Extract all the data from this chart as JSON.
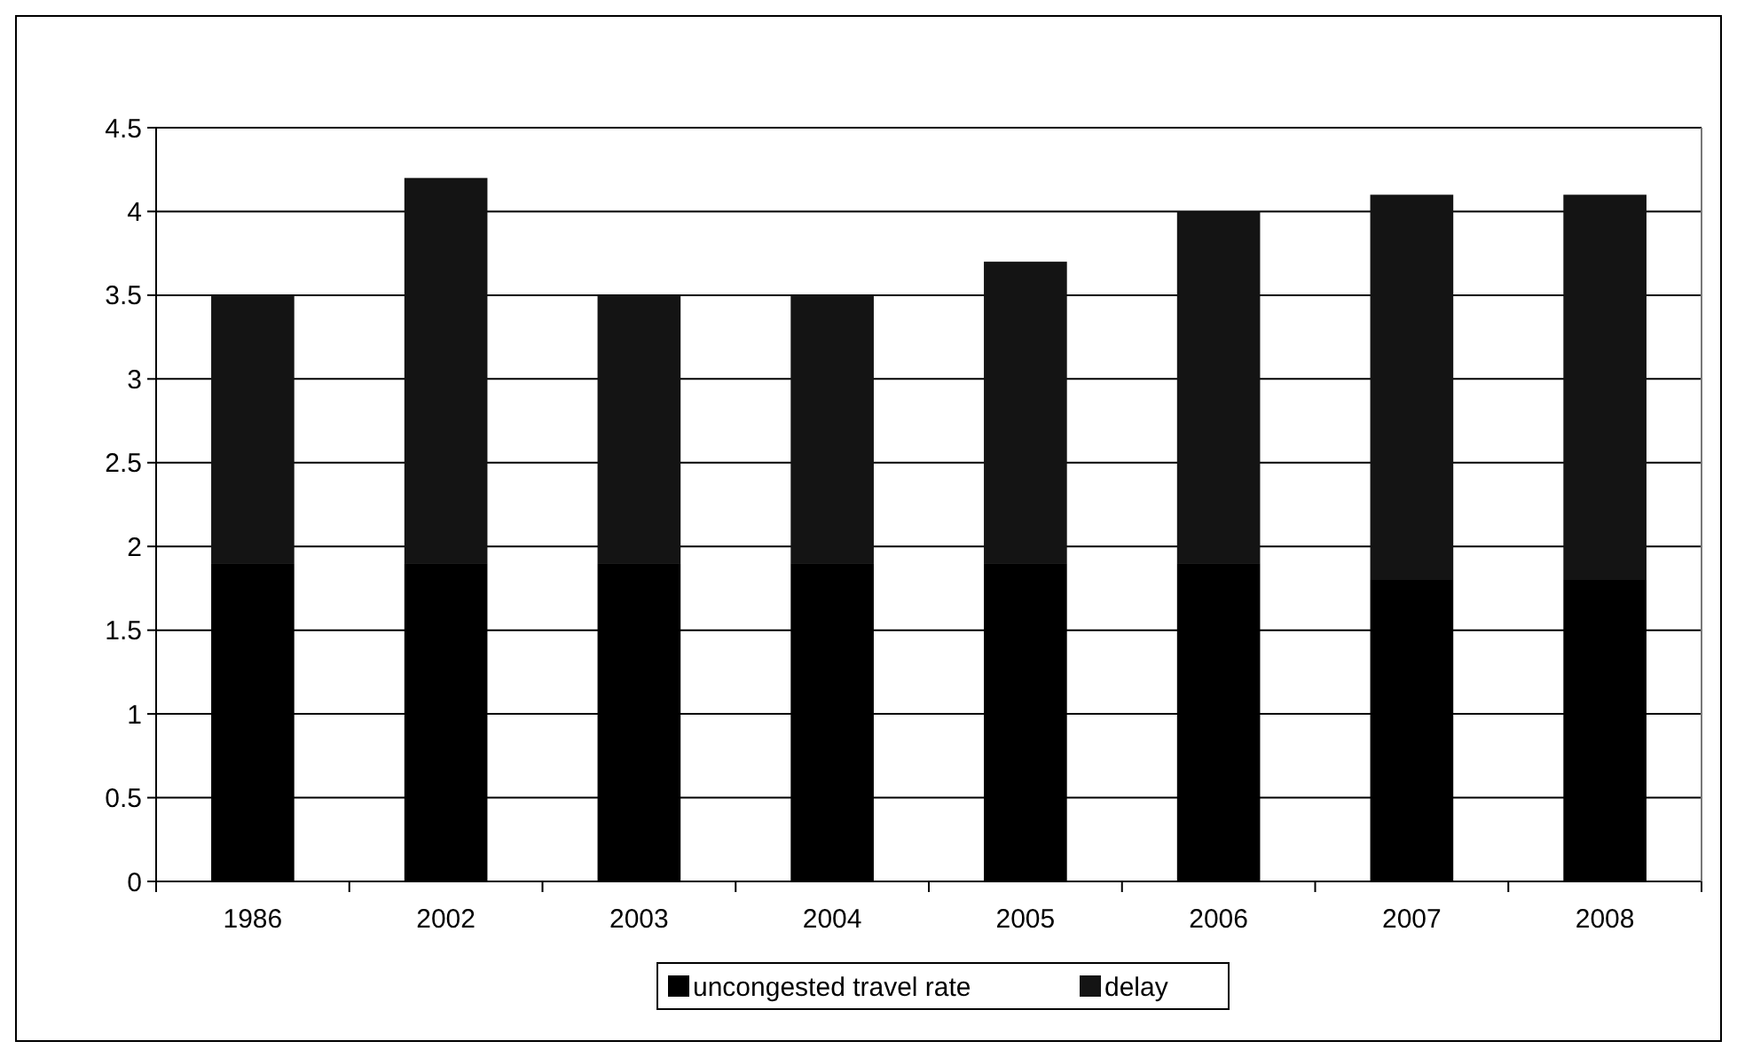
{
  "chart_data": {
    "type": "bar",
    "stacked": true,
    "categories": [
      "1986",
      "2002",
      "2003",
      "2004",
      "2005",
      "2006",
      "2007",
      "2008"
    ],
    "series": [
      {
        "name": "uncongested travel rate",
        "color": "#000000",
        "values": [
          1.9,
          1.9,
          1.9,
          1.9,
          1.9,
          1.9,
          1.8,
          1.8
        ]
      },
      {
        "name": "delay",
        "color": "#141414",
        "values": [
          1.6,
          2.3,
          1.6,
          1.6,
          1.8,
          2.1,
          2.3,
          2.3
        ]
      }
    ],
    "ylim": [
      0,
      4.5
    ],
    "yticks": [
      0,
      0.5,
      1,
      1.5,
      2,
      2.5,
      3,
      3.5,
      4,
      4.5
    ],
    "grid": "y",
    "legend": "bottom"
  }
}
